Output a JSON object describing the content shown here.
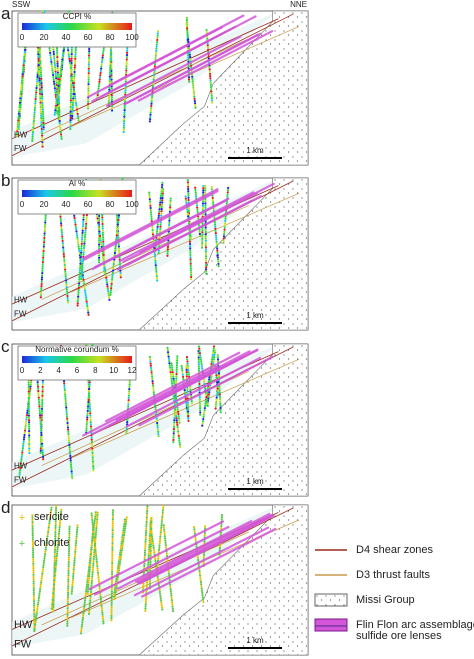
{
  "header": {
    "left": "SSW",
    "right": "NNE"
  },
  "panels": [
    {
      "label": "a",
      "colorbar": {
        "title": "CCPI %",
        "ticks": [
          0,
          20,
          40,
          60,
          80,
          100
        ]
      },
      "hw": "HW",
      "fw": "FW",
      "scale": "1 km"
    },
    {
      "label": "b",
      "colorbar": {
        "title": "Al %",
        "ticks": [
          0,
          20,
          40,
          60,
          80,
          100
        ]
      },
      "hw": "HW",
      "fw": "FW",
      "scale": "1 km"
    },
    {
      "label": "c",
      "colorbar": {
        "title": "Normative corundum %",
        "ticks": [
          0,
          2,
          4,
          6,
          8,
          10,
          12
        ]
      },
      "hw": "HW",
      "fw": "FW",
      "scale": "1 km"
    },
    {
      "label": "d",
      "markers": [
        {
          "name": "sericite",
          "color": "#e6c200"
        },
        {
          "name": "chlorite",
          "color": "#5cc84a"
        }
      ],
      "hw": "HW",
      "fw": "FW",
      "scale": "1 km"
    }
  ],
  "legend": [
    {
      "lines": [
        "D4 shear zones"
      ],
      "color": "#9b2a1a"
    },
    {
      "lines": [
        "D3 thrust faults"
      ],
      "color": "#c99a4a"
    },
    {
      "lines": [
        "Missi Group"
      ]
    },
    {
      "lines": [
        "Flin Flon arc assemblage",
        "sulfide ore lenses"
      ],
      "color": "#d455d8"
    }
  ]
}
